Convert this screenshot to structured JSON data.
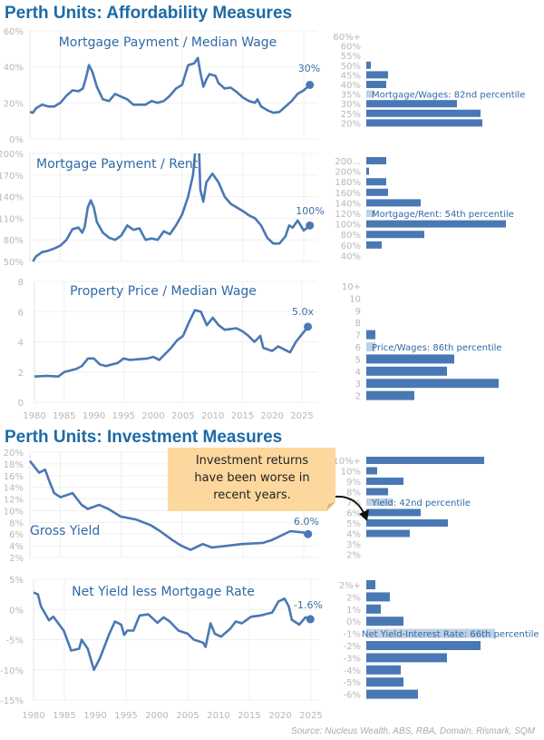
{
  "titles": {
    "affordability": "Perth Units: Affordability Measures",
    "investment": "Perth Units: Investment Measures"
  },
  "callout": {
    "lines": [
      "Investment returns",
      "have been worse in",
      "recent years."
    ],
    "color": "#fcd89e"
  },
  "source": "Source: Nucleus Wealth, ABS, RBA, Domain, Rismark, SQM",
  "colors": {
    "line": "#4a78b5",
    "bar": "#4a78b5",
    "title": "#1c6ba6"
  },
  "chart_data": [
    {
      "type": "line",
      "title": "Mortgage Payment / Median Wage",
      "end_label": "30%",
      "ylim": [
        0,
        60
      ],
      "yticks": [
        "0%",
        "20%",
        "40%",
        "60%"
      ],
      "ytick_values": [
        0,
        20,
        40,
        60
      ],
      "xticks": [],
      "xlim": [
        1980,
        2026
      ],
      "points": [
        [
          1980,
          15
        ],
        [
          1980.5,
          14.5
        ],
        [
          1981,
          17
        ],
        [
          1982,
          19
        ],
        [
          1983,
          18
        ],
        [
          1984,
          18
        ],
        [
          1985,
          20
        ],
        [
          1986,
          24
        ],
        [
          1987,
          27
        ],
        [
          1988,
          26.5
        ],
        [
          1988.7,
          28
        ],
        [
          1989.3,
          35
        ],
        [
          1989.7,
          41
        ],
        [
          1990.3,
          37
        ],
        [
          1991,
          29
        ],
        [
          1992,
          22
        ],
        [
          1993,
          21
        ],
        [
          1994,
          25
        ],
        [
          1995,
          23.5
        ],
        [
          1996,
          22
        ],
        [
          1997,
          19
        ],
        [
          1998,
          19
        ],
        [
          1999,
          19
        ],
        [
          2000,
          21
        ],
        [
          2001,
          20
        ],
        [
          2002,
          21
        ],
        [
          2003,
          24
        ],
        [
          2004,
          28
        ],
        [
          2005,
          30
        ],
        [
          2006,
          41
        ],
        [
          2007,
          42
        ],
        [
          2007.6,
          45
        ],
        [
          2008,
          37
        ],
        [
          2008.5,
          29
        ],
        [
          2009,
          33
        ],
        [
          2009.5,
          36
        ],
        [
          2010.5,
          35
        ],
        [
          2011,
          31
        ],
        [
          2012,
          28
        ],
        [
          2013,
          28.5
        ],
        [
          2014,
          26
        ],
        [
          2015,
          23
        ],
        [
          2016,
          21
        ],
        [
          2017,
          20
        ],
        [
          2017.4,
          22
        ],
        [
          2018,
          18
        ],
        [
          2019,
          16
        ],
        [
          2020,
          14.5
        ],
        [
          2021,
          15
        ],
        [
          2022,
          18
        ],
        [
          2023,
          21
        ],
        [
          2024,
          25
        ],
        [
          2025,
          27
        ],
        [
          2026,
          30
        ]
      ]
    },
    {
      "type": "line",
      "title": "Mortgage Payment / Rent",
      "end_label": "100%",
      "ylim": [
        50,
        200
      ],
      "yticks": [
        "50%",
        "80%",
        "110%",
        "140%",
        "170%",
        "200%"
      ],
      "ytick_values": [
        50,
        80,
        110,
        140,
        170,
        200
      ],
      "xticks": [],
      "xlim": [
        1980,
        2026
      ],
      "points": [
        [
          1980.5,
          50
        ],
        [
          1981,
          57
        ],
        [
          1982,
          63
        ],
        [
          1983,
          65
        ],
        [
          1984,
          68
        ],
        [
          1985,
          72
        ],
        [
          1986,
          80
        ],
        [
          1987,
          95
        ],
        [
          1988,
          97
        ],
        [
          1988.6,
          90
        ],
        [
          1989,
          98
        ],
        [
          1989.5,
          125
        ],
        [
          1990,
          135
        ],
        [
          1990.5,
          125
        ],
        [
          1991,
          105
        ],
        [
          1992,
          90
        ],
        [
          1993,
          83
        ],
        [
          1994,
          80
        ],
        [
          1995,
          86
        ],
        [
          1996,
          100
        ],
        [
          1997,
          94
        ],
        [
          1998,
          96
        ],
        [
          1999,
          80
        ],
        [
          2000,
          82
        ],
        [
          2001,
          80
        ],
        [
          2002,
          92
        ],
        [
          2003,
          88
        ],
        [
          2004,
          100
        ],
        [
          2005,
          115
        ],
        [
          2006,
          140
        ],
        [
          2006.8,
          170
        ],
        [
          2007.2,
          205
        ],
        [
          2007.8,
          205
        ],
        [
          2008,
          150
        ],
        [
          2008.5,
          133
        ],
        [
          2009,
          160
        ],
        [
          2010,
          172
        ],
        [
          2011,
          160
        ],
        [
          2012,
          140
        ],
        [
          2013,
          130
        ],
        [
          2014,
          125
        ],
        [
          2015,
          120
        ],
        [
          2016,
          114
        ],
        [
          2017,
          110
        ],
        [
          2018,
          100
        ],
        [
          2019,
          83
        ],
        [
          2020,
          75
        ],
        [
          2021,
          75
        ],
        [
          2022,
          85
        ],
        [
          2022.6,
          100
        ],
        [
          2023.2,
          97
        ],
        [
          2024,
          107
        ],
        [
          2025,
          93
        ],
        [
          2026,
          100
        ]
      ]
    },
    {
      "type": "line",
      "title": "Property Price / Median Wage",
      "end_label": "5.0x",
      "ylim": [
        0,
        8
      ],
      "yticks": [
        "0",
        "2",
        "4",
        "6",
        "8"
      ],
      "ytick_values": [
        0,
        2,
        4,
        6,
        8
      ],
      "xticks": [
        "1980",
        "1985",
        "1990",
        "1995",
        "2000",
        "2005",
        "2010",
        "2015",
        "2020",
        "2025"
      ],
      "xlim": [
        1980,
        2026
      ],
      "points": [
        [
          1980,
          1.7
        ],
        [
          1982,
          1.75
        ],
        [
          1984,
          1.7
        ],
        [
          1985,
          2.0
        ],
        [
          1987,
          2.2
        ],
        [
          1988,
          2.4
        ],
        [
          1989,
          2.9
        ],
        [
          1990,
          2.9
        ],
        [
          1991,
          2.5
        ],
        [
          1992,
          2.4
        ],
        [
          1994,
          2.6
        ],
        [
          1995,
          2.9
        ],
        [
          1996,
          2.8
        ],
        [
          1999,
          2.9
        ],
        [
          2000,
          3.0
        ],
        [
          2001,
          2.8
        ],
        [
          2002,
          3.2
        ],
        [
          2003,
          3.6
        ],
        [
          2004,
          4.1
        ],
        [
          2005,
          4.4
        ],
        [
          2006,
          5.3
        ],
        [
          2007,
          6.1
        ],
        [
          2008,
          6.0
        ],
        [
          2009,
          5.1
        ],
        [
          2010,
          5.6
        ],
        [
          2011,
          5.1
        ],
        [
          2012,
          4.8
        ],
        [
          2014,
          4.9
        ],
        [
          2015,
          4.7
        ],
        [
          2016,
          4.4
        ],
        [
          2017,
          4.0
        ],
        [
          2018,
          4.4
        ],
        [
          2018.5,
          3.6
        ],
        [
          2020,
          3.4
        ],
        [
          2021,
          3.7
        ],
        [
          2022,
          3.5
        ],
        [
          2023,
          3.3
        ],
        [
          2024,
          4.0
        ],
        [
          2025,
          4.5
        ],
        [
          2026,
          5.0
        ]
      ]
    },
    {
      "type": "line",
      "title": "Gross Yield",
      "end_label": "6.0%",
      "ylim": [
        2,
        20
      ],
      "yticks": [
        "2%",
        "4%",
        "6%",
        "8%",
        "10%",
        "12%",
        "14%",
        "16%",
        "18%",
        "20%"
      ],
      "ytick_values": [
        2,
        4,
        6,
        8,
        10,
        12,
        14,
        16,
        18,
        20
      ],
      "xticks": [],
      "xlim": [
        1980,
        2026
      ],
      "points": [
        [
          1980,
          18.5
        ],
        [
          1981.5,
          16.5
        ],
        [
          1982.5,
          17
        ],
        [
          1983.2,
          15
        ],
        [
          1984,
          13
        ],
        [
          1985,
          12.3
        ],
        [
          1987,
          13
        ],
        [
          1988.5,
          11
        ],
        [
          1989.5,
          10.3
        ],
        [
          1991.4,
          11
        ],
        [
          1992.9,
          10.3
        ],
        [
          1994.9,
          9
        ],
        [
          1997.4,
          8.5
        ],
        [
          1999.9,
          7.5
        ],
        [
          2001.4,
          6.5
        ],
        [
          2003.4,
          5
        ],
        [
          2004.9,
          4
        ],
        [
          2006.4,
          3.3
        ],
        [
          2008.4,
          4.3
        ],
        [
          2009.9,
          3.7
        ],
        [
          2014.8,
          4.3
        ],
        [
          2018.3,
          4.5
        ],
        [
          2019.8,
          5
        ],
        [
          2022.8,
          6.5
        ],
        [
          2024.8,
          6.3
        ],
        [
          2025.7,
          6.0
        ]
      ]
    },
    {
      "type": "line",
      "title": "Net Yield less Mortgage Rate",
      "end_label": "-1.6%",
      "ylim": [
        -15,
        5
      ],
      "yticks": [
        "-15%",
        "-10%",
        "-5%",
        "0%",
        "5%"
      ],
      "ytick_values": [
        -15,
        -10,
        -5,
        0,
        5
      ],
      "xticks": [
        "1980",
        "1985",
        "1990",
        "1995",
        "2000",
        "2005",
        "2010",
        "2015",
        "2020",
        "2025"
      ],
      "xlim": [
        1980,
        2026
      ],
      "points": [
        [
          1980,
          2.8
        ],
        [
          1980.7,
          2.5
        ],
        [
          1981.2,
          0.5
        ],
        [
          1982.5,
          -1.8
        ],
        [
          1983.2,
          -1.2
        ],
        [
          1984.9,
          -3.5
        ],
        [
          1986.1,
          -6.8
        ],
        [
          1987.4,
          -6.5
        ],
        [
          1987.8,
          -5
        ],
        [
          1988.8,
          -6.5
        ],
        [
          1989.8,
          -10
        ],
        [
          1990.8,
          -8
        ],
        [
          1992.3,
          -4
        ],
        [
          1993.2,
          -2
        ],
        [
          1994.2,
          -2.5
        ],
        [
          1994.7,
          -4.2
        ],
        [
          1995.2,
          -3.5
        ],
        [
          1996.2,
          -3.5
        ],
        [
          1997.2,
          -1
        ],
        [
          1998.6,
          -0.8
        ],
        [
          2000.1,
          -2.2
        ],
        [
          2001.1,
          -1.3
        ],
        [
          2002.1,
          -2
        ],
        [
          2003.5,
          -3.5
        ],
        [
          2005,
          -4
        ],
        [
          2006,
          -5
        ],
        [
          2007.5,
          -5.5
        ],
        [
          2007.9,
          -6.2
        ],
        [
          2008.7,
          -2.3
        ],
        [
          2009.4,
          -4
        ],
        [
          2010.4,
          -4.5
        ],
        [
          2011.9,
          -3.2
        ],
        [
          2012.8,
          -2
        ],
        [
          2013.8,
          -2.3
        ],
        [
          2015.3,
          -1.2
        ],
        [
          2016.8,
          -1
        ],
        [
          2018.7,
          -0.5
        ],
        [
          2019.7,
          1.3
        ],
        [
          2020.7,
          1.8
        ],
        [
          2021.4,
          0.5
        ],
        [
          2021.9,
          -1.7
        ],
        [
          2023.1,
          -2.5
        ],
        [
          2024.1,
          -1.3
        ],
        [
          2024.9,
          -1.6
        ]
      ]
    },
    {
      "type": "bar",
      "orientation": "horizontal",
      "percentile_label": "Mortgage/Wages: 82nd percentile",
      "highlight": "35%",
      "categories": [
        "60%+",
        "60%",
        "55%",
        "50%",
        "45%",
        "40%",
        "35%",
        "30%",
        "25%",
        "20%"
      ],
      "values": [
        0,
        0,
        0,
        5,
        24,
        22,
        8,
        100,
        126,
        128
      ]
    },
    {
      "type": "bar",
      "orientation": "horizontal",
      "percentile_label": "Mortgage/Rent: 54th percentile",
      "highlight": "120%",
      "categories": [
        "200...",
        "200%",
        "180%",
        "160%",
        "140%",
        "120%",
        "100%",
        "80%",
        "60%",
        "40%"
      ],
      "values": [
        22,
        3,
        22,
        24,
        60,
        10,
        154,
        64,
        17,
        0
      ]
    },
    {
      "type": "bar",
      "orientation": "horizontal",
      "percentile_label": "Price/Wages: 86th percentile",
      "highlight": "6",
      "categories": [
        "10+",
        "10",
        "9",
        "8",
        "7",
        "6",
        "5",
        "4",
        "3",
        "2"
      ],
      "values": [
        0,
        0,
        0,
        0,
        10,
        10,
        97,
        89,
        146,
        53
      ]
    },
    {
      "type": "bar",
      "orientation": "horizontal",
      "percentile_label": "Yield: 42nd percentile",
      "highlight": "7%",
      "categories": [
        "10%+",
        "10%",
        "9%",
        "8%",
        "7%",
        "6%",
        "5%",
        "4%",
        "3%",
        "2%"
      ],
      "values": [
        130,
        12,
        41,
        24,
        28,
        60,
        90,
        48,
        0,
        0
      ]
    },
    {
      "type": "bar",
      "orientation": "horizontal",
      "percentile_label": "Net Yield-Interest Rate: 66th percentile",
      "highlight": "-1%",
      "categories": [
        "2%+",
        "2%",
        "1%",
        "0%",
        "-1%",
        "-2%",
        "-3%",
        "-4%",
        "-5%",
        "-6%"
      ],
      "values": [
        10,
        26,
        16,
        41,
        142,
        126,
        89,
        38,
        41,
        57
      ]
    }
  ]
}
